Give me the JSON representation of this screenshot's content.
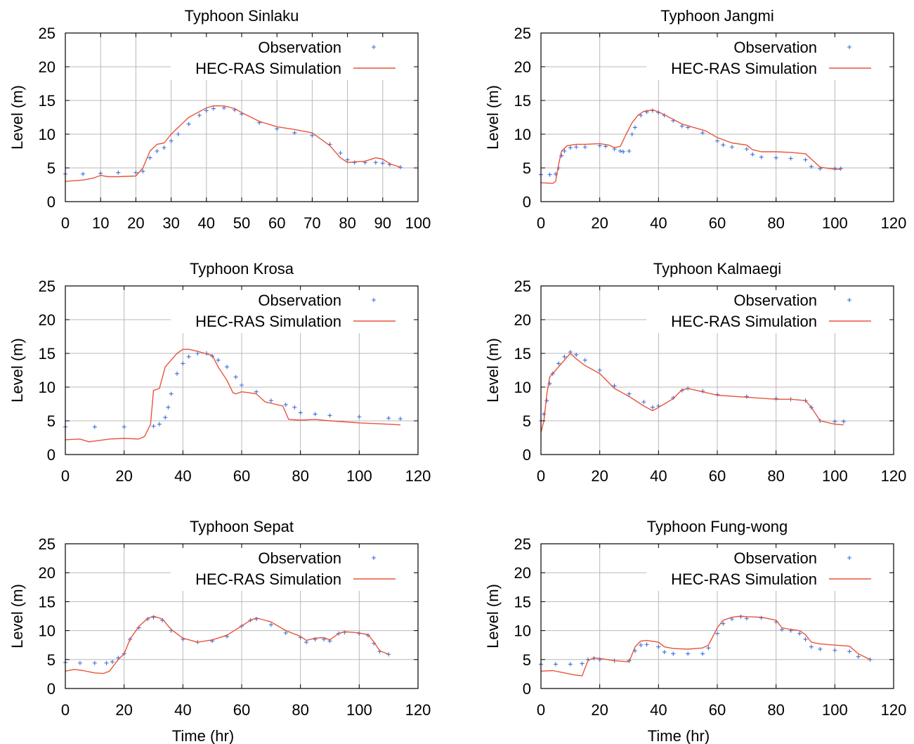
{
  "colors": {
    "observation": "#3b6fd8",
    "simulation": "#e8553a",
    "grid": "#b8b8b8",
    "frame": "#000000"
  },
  "chart_data": [
    {
      "type": "line",
      "title": "Typhoon Sinlaku",
      "xlabel": "",
      "ylabel": "Level (m)",
      "xlim": [
        0,
        100
      ],
      "ylim": [
        0,
        25
      ],
      "xticks": [
        0,
        10,
        20,
        30,
        40,
        50,
        60,
        70,
        80,
        90,
        100
      ],
      "yticks": [
        0,
        5,
        10,
        15,
        20,
        25
      ],
      "grid": true,
      "legend": "top-right",
      "series": [
        {
          "name": "Observation",
          "kind": "points",
          "x": [
            0,
            5,
            10,
            15,
            20,
            22,
            24,
            26,
            28,
            30,
            32,
            35,
            38,
            40,
            42,
            45,
            48,
            50,
            55,
            60,
            65,
            70,
            75,
            78,
            80,
            82,
            85,
            88,
            90,
            92,
            95
          ],
          "y": [
            4.1,
            4.1,
            4.2,
            4.3,
            4.3,
            4.5,
            6.5,
            7.5,
            8.0,
            9.0,
            10.0,
            11.5,
            12.8,
            13.5,
            13.8,
            13.9,
            13.6,
            13.0,
            11.7,
            10.8,
            10.2,
            9.8,
            8.5,
            7.2,
            6.2,
            5.8,
            5.8,
            5.8,
            5.7,
            5.5,
            5.1
          ]
        },
        {
          "name": "HEC-RAS Simulation",
          "kind": "line",
          "x": [
            0,
            5,
            8,
            10,
            12,
            15,
            20,
            22,
            24,
            26,
            28,
            30,
            35,
            40,
            42,
            45,
            48,
            50,
            55,
            60,
            65,
            70,
            75,
            78,
            80,
            82,
            85,
            88,
            90,
            92,
            95
          ],
          "y": [
            3.0,
            3.2,
            3.5,
            3.9,
            3.7,
            3.7,
            3.8,
            5.0,
            7.5,
            8.5,
            8.7,
            10.0,
            12.5,
            13.9,
            14.2,
            14.2,
            13.8,
            13.2,
            11.9,
            11.1,
            10.7,
            10.2,
            8.3,
            6.5,
            5.8,
            5.9,
            6.0,
            6.5,
            6.3,
            5.6,
            5.1
          ]
        }
      ]
    },
    {
      "type": "line",
      "title": "Typhoon Jangmi",
      "xlabel": "",
      "ylabel": "Level (m)",
      "xlim": [
        0,
        120
      ],
      "ylim": [
        0,
        25
      ],
      "xticks": [
        0,
        20,
        40,
        60,
        80,
        100,
        120
      ],
      "yticks": [
        0,
        5,
        10,
        15,
        20,
        25
      ],
      "grid": true,
      "legend": "top-right",
      "series": [
        {
          "name": "Observation",
          "kind": "points",
          "x": [
            0,
            3,
            5,
            6,
            7,
            8,
            10,
            12,
            15,
            20,
            22,
            25,
            27,
            28,
            30,
            31,
            32,
            34,
            36,
            38,
            40,
            42,
            45,
            48,
            50,
            55,
            60,
            62,
            65,
            70,
            72,
            75,
            80,
            85,
            90,
            92,
            95,
            100,
            102
          ],
          "y": [
            4.0,
            4.0,
            4.1,
            5.0,
            6.8,
            7.5,
            8.0,
            8.1,
            8.1,
            8.3,
            8.2,
            7.8,
            7.5,
            7.4,
            7.5,
            10.0,
            11.0,
            12.8,
            13.3,
            13.5,
            13.2,
            12.8,
            12.0,
            11.2,
            11.0,
            10.2,
            9.0,
            8.4,
            8.1,
            7.8,
            7.0,
            6.6,
            6.5,
            6.4,
            6.2,
            5.2,
            4.9,
            4.9,
            4.9
          ]
        },
        {
          "name": "HEC-RAS Simulation",
          "kind": "line",
          "x": [
            0,
            4,
            5,
            6,
            7,
            9,
            12,
            15,
            20,
            23,
            25,
            27,
            29,
            31,
            33,
            35,
            38,
            40,
            45,
            48,
            52,
            56,
            60,
            65,
            70,
            72,
            75,
            80,
            85,
            90,
            92,
            95,
            100,
            102
          ],
          "y": [
            2.8,
            2.7,
            3.0,
            5.5,
            7.5,
            8.3,
            8.5,
            8.5,
            8.6,
            8.4,
            8.0,
            8.2,
            10.0,
            11.7,
            12.8,
            13.4,
            13.6,
            13.3,
            12.2,
            11.5,
            11.0,
            10.5,
            9.5,
            8.7,
            8.4,
            7.7,
            7.4,
            7.4,
            7.3,
            7.1,
            6.3,
            5.1,
            4.8,
            4.8
          ]
        }
      ]
    },
    {
      "type": "line",
      "title": "Typhoon Krosa",
      "xlabel": "",
      "ylabel": "Level (m)",
      "xlim": [
        0,
        120
      ],
      "ylim": [
        0,
        25
      ],
      "xticks": [
        0,
        20,
        40,
        60,
        80,
        100,
        120
      ],
      "yticks": [
        0,
        5,
        10,
        15,
        20,
        25
      ],
      "grid": true,
      "legend": "top-right",
      "series": [
        {
          "name": "Observation",
          "kind": "points",
          "x": [
            0,
            10,
            20,
            30,
            32,
            34,
            35,
            36,
            38,
            40,
            42,
            45,
            48,
            50,
            52,
            55,
            58,
            60,
            65,
            70,
            75,
            78,
            80,
            85,
            90,
            100,
            110,
            114
          ],
          "y": [
            4.1,
            4.1,
            4.1,
            4.2,
            4.5,
            5.5,
            7.0,
            9.0,
            12.0,
            13.5,
            14.5,
            15.0,
            15.0,
            14.6,
            14.0,
            13.0,
            11.5,
            10.3,
            9.3,
            8.0,
            7.4,
            7.0,
            6.2,
            6.0,
            5.8,
            5.6,
            5.4,
            5.3
          ]
        },
        {
          "name": "HEC-RAS Simulation",
          "kind": "line",
          "x": [
            0,
            5,
            8,
            10,
            15,
            20,
            25,
            27,
            29,
            30,
            32,
            34,
            36,
            38,
            40,
            42,
            45,
            50,
            52,
            55,
            57,
            58,
            60,
            62,
            65,
            68,
            70,
            74,
            76,
            80,
            85,
            90,
            100,
            110,
            114
          ],
          "y": [
            2.2,
            2.3,
            1.9,
            2.0,
            2.3,
            2.4,
            2.3,
            2.7,
            4.5,
            9.5,
            9.8,
            13.0,
            14.0,
            15.0,
            15.6,
            15.6,
            15.3,
            14.7,
            13.0,
            11.0,
            9.2,
            9.0,
            9.3,
            9.2,
            9.0,
            7.8,
            7.6,
            7.2,
            5.2,
            5.1,
            5.2,
            5.0,
            4.7,
            4.5,
            4.4
          ]
        }
      ]
    },
    {
      "type": "line",
      "title": "Typhoon Kalmaegi",
      "xlabel": "",
      "ylabel": "Level (m)",
      "xlim": [
        0,
        120
      ],
      "ylim": [
        0,
        25
      ],
      "xticks": [
        0,
        20,
        40,
        60,
        80,
        100,
        120
      ],
      "yticks": [
        0,
        5,
        10,
        15,
        20,
        25
      ],
      "grid": true,
      "legend": "top-right",
      "series": [
        {
          "name": "Observation",
          "kind": "points",
          "x": [
            0,
            1,
            2,
            3,
            4,
            6,
            8,
            10,
            12,
            15,
            20,
            25,
            30,
            35,
            38,
            40,
            45,
            48,
            50,
            55,
            60,
            70,
            80,
            85,
            90,
            92,
            95,
            100,
            103
          ],
          "y": [
            5.0,
            6.0,
            8.0,
            10.5,
            12.0,
            13.5,
            14.5,
            15.2,
            14.8,
            14.0,
            12.5,
            10.2,
            9.0,
            7.8,
            7.0,
            7.2,
            8.4,
            9.5,
            9.8,
            9.4,
            8.9,
            8.6,
            8.3,
            8.2,
            8.0,
            7.0,
            5.0,
            4.9,
            4.9
          ]
        },
        {
          "name": "HEC-RAS Simulation",
          "kind": "line",
          "x": [
            0,
            1,
            2,
            3,
            5,
            8,
            10,
            12,
            15,
            20,
            25,
            30,
            35,
            38,
            40,
            42,
            45,
            48,
            50,
            55,
            60,
            70,
            80,
            85,
            90,
            92,
            95,
            100,
            103
          ],
          "y": [
            3.3,
            5.0,
            9.0,
            11.5,
            12.5,
            14.0,
            15.0,
            14.2,
            13.2,
            12.0,
            9.8,
            8.6,
            7.2,
            6.5,
            7.0,
            7.5,
            8.3,
            9.6,
            9.8,
            9.3,
            8.8,
            8.5,
            8.2,
            8.2,
            8.0,
            7.0,
            5.0,
            4.5,
            4.4
          ]
        }
      ]
    },
    {
      "type": "line",
      "title": "Typhoon Sepat",
      "xlabel": "Time (hr)",
      "ylabel": "Level (m)",
      "xlim": [
        0,
        120
      ],
      "ylim": [
        0,
        25
      ],
      "xticks": [
        0,
        20,
        40,
        60,
        80,
        100,
        120
      ],
      "yticks": [
        0,
        5,
        10,
        15,
        20,
        25
      ],
      "grid": true,
      "legend": "top-right",
      "series": [
        {
          "name": "Observation",
          "kind": "points",
          "x": [
            0,
            5,
            10,
            14,
            16,
            18,
            20,
            22,
            25,
            28,
            30,
            33,
            36,
            40,
            45,
            50,
            55,
            60,
            63,
            65,
            70,
            75,
            80,
            82,
            85,
            88,
            90,
            93,
            95,
            100,
            103,
            105,
            107,
            110
          ],
          "y": [
            4.5,
            4.4,
            4.4,
            4.4,
            4.6,
            5.3,
            6.0,
            8.5,
            10.5,
            12.0,
            12.3,
            11.8,
            10.0,
            8.5,
            8.0,
            8.2,
            9.0,
            10.8,
            11.8,
            12.0,
            11.0,
            9.6,
            8.8,
            8.0,
            8.5,
            8.5,
            8.2,
            9.5,
            9.7,
            9.5,
            9.2,
            7.8,
            6.4,
            5.9
          ]
        },
        {
          "name": "HEC-RAS Simulation",
          "kind": "line",
          "x": [
            0,
            3,
            6,
            10,
            13,
            15,
            18,
            20,
            22,
            25,
            28,
            30,
            33,
            36,
            40,
            45,
            50,
            55,
            60,
            63,
            65,
            70,
            75,
            80,
            82,
            85,
            88,
            90,
            93,
            95,
            100,
            103,
            105,
            107,
            110
          ],
          "y": [
            3.0,
            3.3,
            3.1,
            2.7,
            2.6,
            3.0,
            5.0,
            6.0,
            8.5,
            10.7,
            12.1,
            12.5,
            12.0,
            10.2,
            8.7,
            8.0,
            8.4,
            9.2,
            10.8,
            11.8,
            12.2,
            11.5,
            10.0,
            9.0,
            8.3,
            8.7,
            8.8,
            8.4,
            9.5,
            9.8,
            9.6,
            9.3,
            8.0,
            6.5,
            5.9
          ]
        }
      ]
    },
    {
      "type": "line",
      "title": "Typhoon Fung-wong",
      "xlabel": "Time (hr)",
      "ylabel": "Level (m)",
      "xlim": [
        0,
        120
      ],
      "ylim": [
        0,
        25
      ],
      "xticks": [
        0,
        20,
        40,
        60,
        80,
        100,
        120
      ],
      "yticks": [
        0,
        5,
        10,
        15,
        20,
        25
      ],
      "grid": true,
      "legend": "top-right",
      "series": [
        {
          "name": "Observation",
          "kind": "points",
          "x": [
            0,
            5,
            10,
            14,
            16,
            18,
            20,
            25,
            30,
            32,
            34,
            36,
            40,
            42,
            45,
            50,
            55,
            57,
            60,
            62,
            65,
            68,
            70,
            75,
            80,
            82,
            85,
            88,
            90,
            92,
            95,
            100,
            105,
            108,
            112
          ],
          "y": [
            4.2,
            4.2,
            4.2,
            4.3,
            5.0,
            5.2,
            5.0,
            4.8,
            4.8,
            6.5,
            7.5,
            7.6,
            7.2,
            6.3,
            6.0,
            6.0,
            6.0,
            7.0,
            9.5,
            11.2,
            12.0,
            12.4,
            12.1,
            12.2,
            11.5,
            10.2,
            10.0,
            9.5,
            8.5,
            7.2,
            6.8,
            6.6,
            6.4,
            5.5,
            5.0
          ]
        },
        {
          "name": "HEC-RAS Simulation",
          "kind": "line",
          "x": [
            0,
            4,
            8,
            12,
            14,
            16,
            18,
            20,
            25,
            30,
            32,
            34,
            36,
            40,
            42,
            45,
            50,
            55,
            57,
            60,
            62,
            65,
            68,
            70,
            75,
            80,
            82,
            85,
            88,
            90,
            92,
            95,
            100,
            105,
            108,
            112
          ],
          "y": [
            3.0,
            3.1,
            2.7,
            2.3,
            2.2,
            4.8,
            5.3,
            5.2,
            4.8,
            4.6,
            7.2,
            8.2,
            8.3,
            8.0,
            7.2,
            6.9,
            6.8,
            7.0,
            7.5,
            10.5,
            11.8,
            12.3,
            12.5,
            12.4,
            12.3,
            11.8,
            10.5,
            10.2,
            10.0,
            9.3,
            8.0,
            7.7,
            7.5,
            7.3,
            6.0,
            5.0
          ]
        }
      ]
    }
  ]
}
